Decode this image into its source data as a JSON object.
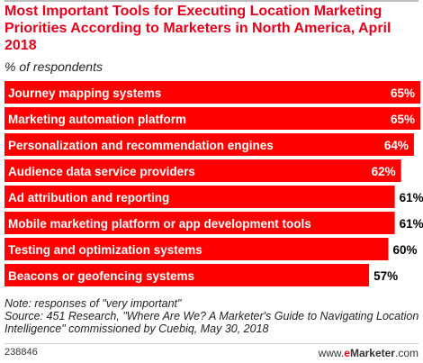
{
  "header": {
    "title": "Most Important Tools for Executing Location Marketing Priorities According to Marketers in North America, April 2018",
    "subtitle": "% of respondents"
  },
  "colors": {
    "bar": "#fe0000",
    "title": "#e3001b"
  },
  "chart_data": {
    "type": "bar",
    "orientation": "horizontal",
    "title": "Most Important Tools for Executing Location Marketing Priorities According to Marketers in North America, April 2018",
    "subtitle": "% of respondents",
    "categories": [
      "Journey mapping systems",
      "Marketing automation platform",
      "Personalization and recommendation engines",
      "Audience data service providers",
      "Ad attribution and reporting",
      "Mobile marketing platform or app development tools",
      "Testing and optimization systems",
      "Beacons or geofencing systems"
    ],
    "values": [
      65,
      65,
      64,
      62,
      61,
      61,
      60,
      57
    ],
    "value_labels": [
      "65%",
      "65%",
      "64%",
      "62%",
      "61%",
      "61%",
      "60%",
      "57%"
    ],
    "xlim": [
      0,
      65
    ],
    "grid": false,
    "legend": "none"
  },
  "footer": {
    "note": "Note: responses of \"very important\"",
    "source": "Source: 451 Research, \"Where Are We? A Marketer's Guide to Navigating Location Intelligence\" commissioned by Cuebiq, May 30, 2018",
    "chart_id": "238846",
    "brand_www": "www.",
    "brand_e": "e",
    "brand_name": "Marketer",
    "brand_tld": ".com"
  }
}
